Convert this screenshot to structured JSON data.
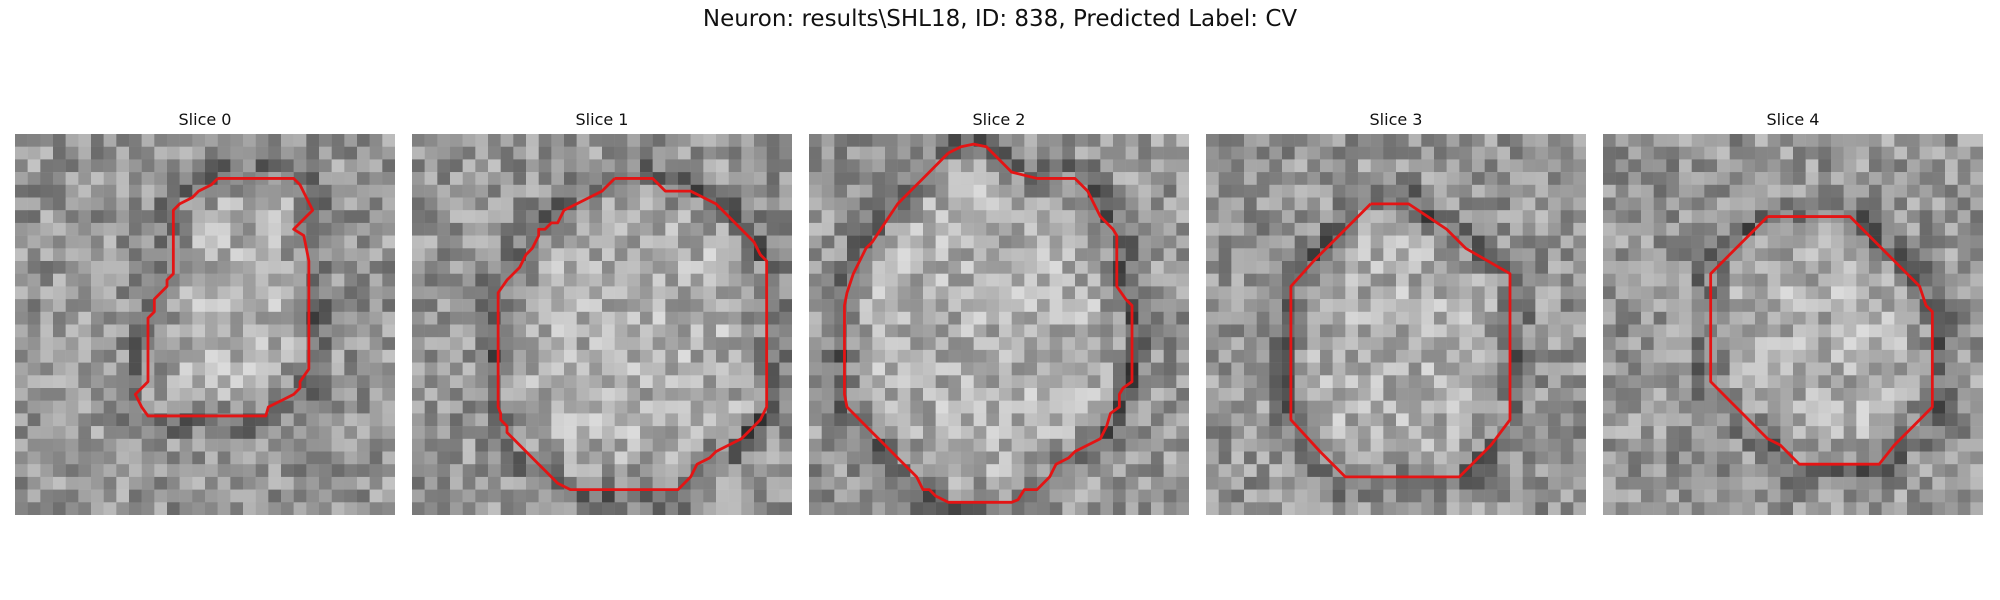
{
  "figure": {
    "title": "Neuron: results\\SHL18, ID: 838, Predicted Label: CV"
  },
  "style": {
    "contour_color": "#e41414",
    "colormap": "gray"
  },
  "grid_size": 30,
  "panels": [
    {
      "title": "Slice 0",
      "seed": 11,
      "contour": [
        [
          16,
          3.5
        ],
        [
          22,
          3.5
        ],
        [
          22.5,
          4
        ],
        [
          23,
          5
        ],
        [
          23.5,
          6
        ],
        [
          23,
          6.5
        ],
        [
          22,
          7.5
        ],
        [
          22.8,
          8
        ],
        [
          23,
          9
        ],
        [
          23.2,
          10
        ],
        [
          23.2,
          17
        ],
        [
          23.2,
          18.5
        ],
        [
          22.5,
          19.5
        ],
        [
          22.5,
          20
        ],
        [
          22,
          20.5
        ],
        [
          21,
          21
        ],
        [
          20,
          21.5
        ],
        [
          19.8,
          22.2
        ],
        [
          10.5,
          22.2
        ],
        [
          10,
          21.5
        ],
        [
          9.5,
          20.5
        ],
        [
          10.5,
          19.5
        ],
        [
          10.5,
          14.5
        ],
        [
          11,
          14
        ],
        [
          11,
          13
        ],
        [
          11.5,
          12.5
        ],
        [
          12,
          12
        ],
        [
          12,
          11.5
        ],
        [
          12.5,
          11
        ],
        [
          12.5,
          6
        ],
        [
          13,
          5.5
        ],
        [
          14,
          5
        ],
        [
          14.5,
          4.5
        ],
        [
          15.5,
          4
        ],
        [
          16,
          3.5
        ]
      ]
    },
    {
      "title": "Slice 1",
      "seed": 23,
      "contour": [
        [
          16,
          3.5
        ],
        [
          19,
          3.5
        ],
        [
          19.5,
          4
        ],
        [
          20,
          4.5
        ],
        [
          22,
          4.5
        ],
        [
          23,
          5
        ],
        [
          24,
          5.5
        ],
        [
          25,
          6.5
        ],
        [
          26,
          7.5
        ],
        [
          27,
          8.5
        ],
        [
          27.5,
          9.5
        ],
        [
          28,
          10
        ],
        [
          28,
          21.5
        ],
        [
          27.5,
          22.5
        ],
        [
          27,
          23
        ],
        [
          26.5,
          23.5
        ],
        [
          26,
          24
        ],
        [
          25,
          24.5
        ],
        [
          24,
          25
        ],
        [
          23.5,
          25.5
        ],
        [
          22.5,
          26
        ],
        [
          22,
          27
        ],
        [
          21,
          28
        ],
        [
          12.5,
          28
        ],
        [
          11.5,
          27.5
        ],
        [
          11,
          27
        ],
        [
          10.5,
          26.5
        ],
        [
          10,
          26
        ],
        [
          9,
          25
        ],
        [
          8.5,
          24.5
        ],
        [
          8,
          24
        ],
        [
          7.5,
          23.5
        ],
        [
          7.5,
          23
        ],
        [
          7,
          22.5
        ],
        [
          7,
          22
        ],
        [
          6.8,
          21.5
        ],
        [
          6.8,
          13
        ],
        [
          6.8,
          12.5
        ],
        [
          7.5,
          11.5
        ],
        [
          8.5,
          10.5
        ],
        [
          9,
          9.5
        ],
        [
          9.5,
          9
        ],
        [
          10,
          8
        ],
        [
          10,
          7.5
        ],
        [
          10.5,
          7.5
        ],
        [
          11,
          7
        ],
        [
          11.5,
          7
        ],
        [
          12,
          6
        ],
        [
          13,
          5.5
        ],
        [
          14,
          5
        ],
        [
          15,
          4.5
        ],
        [
          15.5,
          4
        ],
        [
          16,
          3.5
        ]
      ]
    },
    {
      "title": "Slice 2",
      "seed": 37,
      "contour": [
        [
          11,
          1.5
        ],
        [
          12,
          1
        ],
        [
          13,
          0.8
        ],
        [
          14,
          1
        ],
        [
          14.5,
          1.5
        ],
        [
          15,
          2
        ],
        [
          15.5,
          2.5
        ],
        [
          16,
          3
        ],
        [
          18,
          3.5
        ],
        [
          21,
          3.5
        ],
        [
          22,
          4.5
        ],
        [
          22.5,
          5.5
        ],
        [
          23,
          6.5
        ],
        [
          24,
          7.5
        ],
        [
          24.3,
          8
        ],
        [
          24.3,
          12
        ],
        [
          25,
          13
        ],
        [
          25.5,
          13.5
        ],
        [
          25.5,
          19.5
        ],
        [
          24.8,
          20
        ],
        [
          24.5,
          20.5
        ],
        [
          24.5,
          21.5
        ],
        [
          23.8,
          22
        ],
        [
          23.5,
          23
        ],
        [
          23,
          24
        ],
        [
          22,
          24.5
        ],
        [
          21,
          25
        ],
        [
          20.5,
          25.5
        ],
        [
          19.5,
          26
        ],
        [
          19,
          27
        ],
        [
          18.5,
          27.5
        ],
        [
          18,
          28
        ],
        [
          17,
          28
        ],
        [
          16.5,
          28.8
        ],
        [
          16,
          29
        ],
        [
          11,
          29
        ],
        [
          10,
          28.5
        ],
        [
          9.5,
          28
        ],
        [
          9,
          28
        ],
        [
          8.5,
          27
        ],
        [
          8,
          26.5
        ],
        [
          7,
          25.5
        ],
        [
          6,
          24.5
        ],
        [
          5,
          23.5
        ],
        [
          4,
          22.5
        ],
        [
          3,
          21.5
        ],
        [
          2.8,
          20.5
        ],
        [
          2.8,
          13.5
        ],
        [
          3,
          12.5
        ],
        [
          3.5,
          11
        ],
        [
          4,
          10
        ],
        [
          4.5,
          9
        ],
        [
          5,
          8.5
        ],
        [
          6,
          7
        ],
        [
          7,
          5.5
        ],
        [
          8,
          4.5
        ],
        [
          9,
          3.5
        ],
        [
          10,
          2.5
        ],
        [
          10.5,
          2
        ],
        [
          11,
          1.5
        ]
      ]
    },
    {
      "title": "Slice 3",
      "seed": 53,
      "contour": [
        [
          13,
          5.5
        ],
        [
          16,
          5.5
        ],
        [
          17.5,
          6.5
        ],
        [
          19,
          7.5
        ],
        [
          20.5,
          9
        ],
        [
          24,
          11
        ],
        [
          24,
          22.5
        ],
        [
          22.5,
          24.5
        ],
        [
          20,
          27
        ],
        [
          11,
          27
        ],
        [
          9,
          25
        ],
        [
          6.7,
          22.5
        ],
        [
          6.7,
          12
        ],
        [
          8.5,
          10
        ],
        [
          10.5,
          8
        ],
        [
          13,
          5.5
        ]
      ]
    },
    {
      "title": "Slice 4",
      "seed": 71,
      "contour": [
        [
          13,
          6.5
        ],
        [
          19.5,
          6.5
        ],
        [
          21,
          8
        ],
        [
          22.5,
          9.5
        ],
        [
          24.5,
          11.5
        ],
        [
          25,
          12
        ],
        [
          25.5,
          13.5
        ],
        [
          26,
          14
        ],
        [
          26,
          21.5
        ],
        [
          24.5,
          23
        ],
        [
          23,
          24.5
        ],
        [
          21.8,
          26
        ],
        [
          15.5,
          26
        ],
        [
          15,
          25.5
        ],
        [
          14.5,
          25
        ],
        [
          14,
          24.5
        ],
        [
          13,
          24
        ],
        [
          12.5,
          23.5
        ],
        [
          12,
          23
        ],
        [
          11,
          22
        ],
        [
          10,
          21
        ],
        [
          9,
          20
        ],
        [
          8.5,
          19.5
        ],
        [
          8.5,
          11
        ],
        [
          10,
          9.5
        ],
        [
          11.5,
          8
        ],
        [
          13,
          6.5
        ]
      ]
    }
  ]
}
